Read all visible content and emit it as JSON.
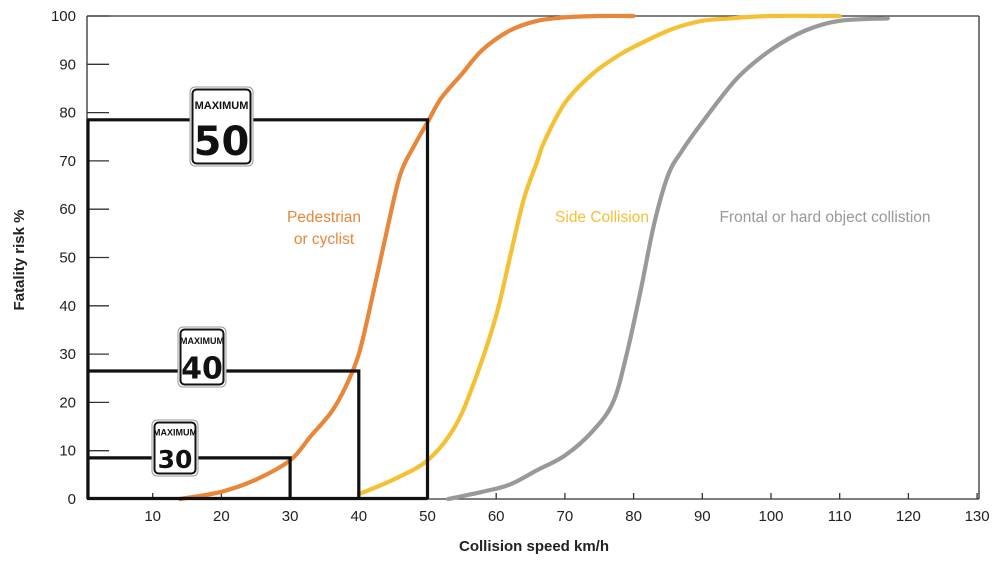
{
  "chart_data": {
    "type": "line",
    "xlabel": "Collision speed km/h",
    "ylabel": "Fatality risk %",
    "xlim": [
      0,
      130
    ],
    "ylim": [
      0,
      100
    ],
    "xticks": [
      10,
      20,
      30,
      40,
      50,
      60,
      70,
      80,
      90,
      100,
      110,
      120,
      130
    ],
    "yticks": [
      0,
      10,
      20,
      30,
      40,
      50,
      60,
      70,
      80,
      90,
      100
    ],
    "grid": false,
    "legend": "none",
    "series": [
      {
        "name_lines": [
          "Pedestrian",
          "or cyclist"
        ],
        "color": "#E8873A",
        "x": [
          14,
          20,
          25,
          30,
          33,
          36,
          38,
          40,
          42,
          44,
          46,
          48,
          50,
          52,
          55,
          58,
          62,
          66,
          70,
          75,
          80
        ],
        "y": [
          0,
          1.5,
          4,
          8,
          13,
          18,
          23,
          30,
          42,
          55,
          67,
          73,
          78,
          83,
          88,
          93,
          97,
          99,
          99.7,
          100,
          100
        ]
      },
      {
        "name": "Side Collision",
        "color": "#F5C033",
        "x": [
          40,
          45,
          50,
          54,
          57,
          60,
          62,
          64,
          66,
          67,
          70,
          74,
          78,
          82,
          86,
          90,
          94,
          100,
          110
        ],
        "y": [
          1,
          4,
          8,
          15,
          25,
          38,
          50,
          62,
          70,
          74,
          82,
          88,
          92,
          95,
          97.5,
          99,
          99.5,
          100,
          100
        ]
      },
      {
        "name": "Frontal or hard object collistion",
        "color": "#999999",
        "x": [
          53,
          58,
          62,
          66,
          70,
          74,
          77,
          79,
          81,
          83,
          85,
          87,
          90,
          95,
          100,
          105,
          110,
          117
        ],
        "y": [
          0,
          1.5,
          3,
          6,
          9,
          14,
          20,
          30,
          43,
          57,
          67,
          72,
          78,
          87,
          93,
          97,
          99,
          99.5
        ]
      }
    ],
    "speed_limit_boxes": [
      {
        "speed": 30,
        "risk": 8.5
      },
      {
        "speed": 40,
        "risk": 26.5
      },
      {
        "speed": 50,
        "risk": 78.5
      }
    ],
    "signs": [
      {
        "top": "MAXIMUM",
        "value": "30"
      },
      {
        "top": "MAXIMUM",
        "value": "40"
      },
      {
        "top": "MAXIMUM",
        "value": "50"
      }
    ]
  }
}
